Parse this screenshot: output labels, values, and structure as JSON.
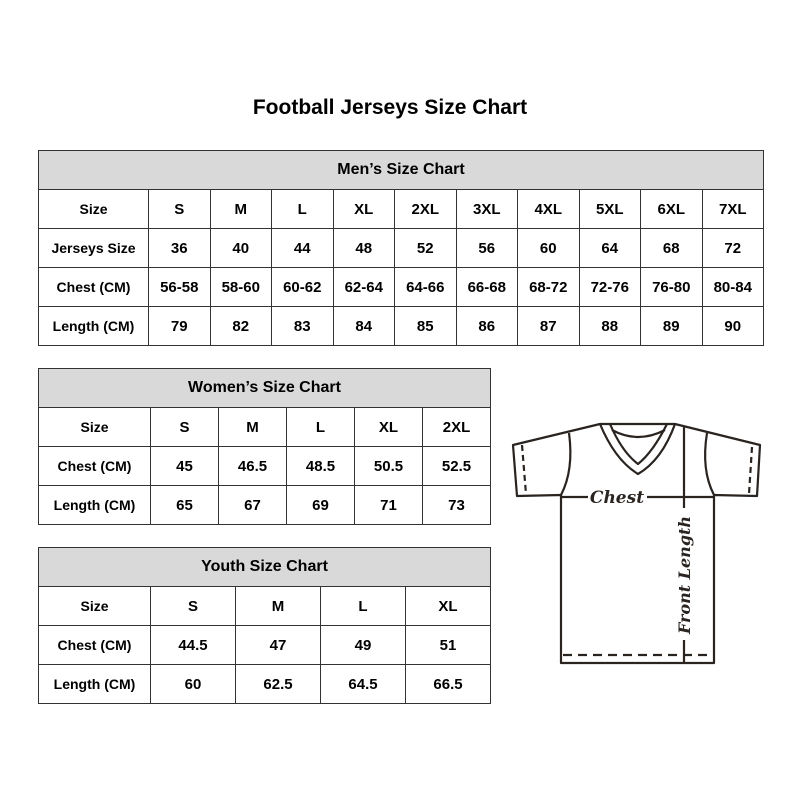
{
  "title": "Football Jerseys Size Chart",
  "men": {
    "heading": "Men’s Size Chart",
    "rows": [
      [
        "Size",
        "S",
        "M",
        "L",
        "XL",
        "2XL",
        "3XL",
        "4XL",
        "5XL",
        "6XL",
        "7XL"
      ],
      [
        "Jerseys Size",
        "36",
        "40",
        "44",
        "48",
        "52",
        "56",
        "60",
        "64",
        "68",
        "72"
      ],
      [
        "Chest (CM)",
        "56-58",
        "58-60",
        "60-62",
        "62-64",
        "64-66",
        "66-68",
        "68-72",
        "72-76",
        "76-80",
        "80-84"
      ],
      [
        "Length (CM)",
        "79",
        "82",
        "83",
        "84",
        "85",
        "86",
        "87",
        "88",
        "89",
        "90"
      ]
    ]
  },
  "women": {
    "heading": "Women’s Size Chart",
    "rows": [
      [
        "Size",
        "S",
        "M",
        "L",
        "XL",
        "2XL"
      ],
      [
        "Chest (CM)",
        "45",
        "46.5",
        "48.5",
        "50.5",
        "52.5"
      ],
      [
        "Length (CM)",
        "65",
        "67",
        "69",
        "71",
        "73"
      ]
    ]
  },
  "youth": {
    "heading": "Youth Size Chart",
    "rows": [
      [
        "Size",
        "S",
        "M",
        "L",
        "XL"
      ],
      [
        "Chest (CM)",
        "44.5",
        "47",
        "49",
        "51"
      ],
      [
        "Length (CM)",
        "60",
        "62.5",
        "64.5",
        "66.5"
      ]
    ]
  },
  "diagram": {
    "chest_label": "Chest",
    "length_label": "Front Length"
  },
  "colors": {
    "header_bg": "#d9d9d9",
    "border": "#333333",
    "line": "#2a2420"
  }
}
